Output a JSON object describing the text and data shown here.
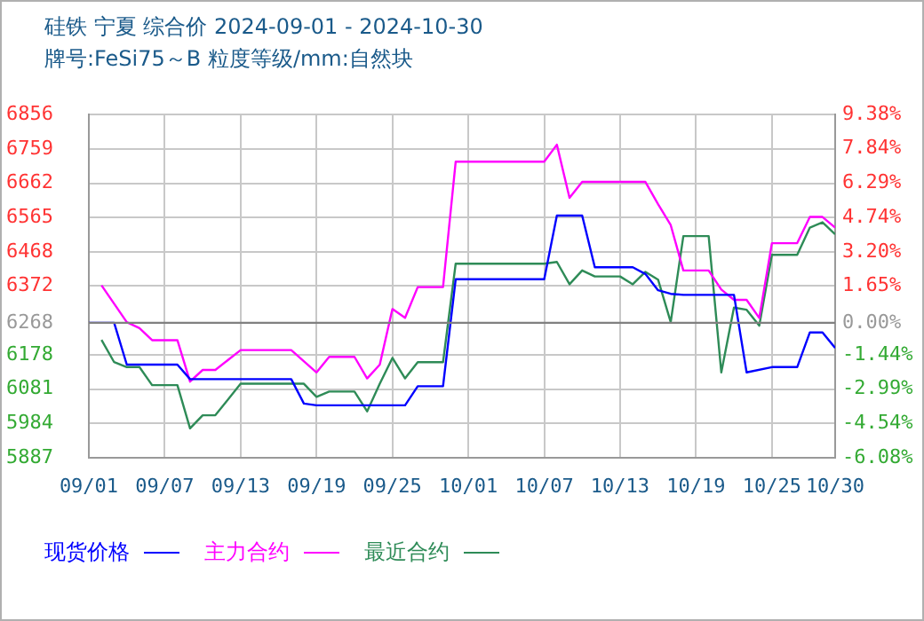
{
  "chart_data": {
    "type": "line",
    "title": "硅铁  宁夏  综合价 2024-09-01 - 2024-10-30",
    "subtitle": "牌号:FeSi75～B 粒度等级/mm:自然块",
    "xlim": [
      "2024-09-01",
      "2024-10-30"
    ],
    "xticks": [
      {
        "value": "2024-09-01",
        "label": "09/01"
      },
      {
        "value": "2024-09-07",
        "label": "09/07"
      },
      {
        "value": "2024-09-13",
        "label": "09/13"
      },
      {
        "value": "2024-09-19",
        "label": "09/19"
      },
      {
        "value": "2024-09-25",
        "label": "09/25"
      },
      {
        "value": "2024-10-01",
        "label": "10/01"
      },
      {
        "value": "2024-10-07",
        "label": "10/07"
      },
      {
        "value": "2024-10-13",
        "label": "10/13"
      },
      {
        "value": "2024-10-19",
        "label": "10/19"
      },
      {
        "value": "2024-10-25",
        "label": "10/25"
      },
      {
        "value": "2024-10-30",
        "label": "10/30"
      }
    ],
    "ylim": [
      5887,
      6856
    ],
    "yticks": [
      5887,
      5984,
      6081,
      6178,
      6268,
      6372,
      6468,
      6565,
      6662,
      6759,
      6856
    ],
    "y2lim": [
      -6.08,
      9.38
    ],
    "y2ticks": [
      {
        "value": -6.08,
        "label": "-6.08%"
      },
      {
        "value": -4.54,
        "label": "-4.54%"
      },
      {
        "value": -2.99,
        "label": "-2.99%"
      },
      {
        "value": -1.44,
        "label": "-1.44%"
      },
      {
        "value": 0,
        "label": "0.00%"
      },
      {
        "value": 1.65,
        "label": "1.65%"
      },
      {
        "value": 3.2,
        "label": "3.20%"
      },
      {
        "value": 4.74,
        "label": "4.74%"
      },
      {
        "value": 6.29,
        "label": "6.29%"
      },
      {
        "value": 7.84,
        "label": "7.84%"
      },
      {
        "value": 9.38,
        "label": "9.38%"
      }
    ],
    "ref_lines": [
      {
        "axis": "y",
        "value": 6268,
        "color": "#808080"
      }
    ],
    "grid": true,
    "legend": "bottom",
    "marker": "none",
    "line_style": "solid",
    "series": [
      {
        "name": "现货价格",
        "color": "#0000ff",
        "x": [
          "2024-09-01",
          "2024-09-03",
          "2024-09-04",
          "2024-09-08",
          "2024-09-09",
          "2024-09-17",
          "2024-09-18",
          "2024-09-19",
          "2024-09-26",
          "2024-09-27",
          "2024-09-29",
          "2024-09-30",
          "2024-10-07",
          "2024-10-08",
          "2024-10-10",
          "2024-10-11",
          "2024-10-14",
          "2024-10-15",
          "2024-10-16",
          "2024-10-17",
          "2024-10-18",
          "2024-10-22",
          "2024-10-23",
          "2024-10-25",
          "2024-10-27",
          "2024-10-28",
          "2024-10-29",
          "2024-10-30"
        ],
        "values": [
          6268,
          6268,
          6150,
          6150,
          6109,
          6109,
          6040,
          6035,
          6035,
          6089,
          6089,
          6391,
          6391,
          6571,
          6571,
          6425,
          6425,
          6406,
          6360,
          6350,
          6347,
          6347,
          6128,
          6143,
          6143,
          6241,
          6241,
          6197
        ]
      },
      {
        "name": "主力合约",
        "color": "#ff00ff",
        "x": [
          "2024-09-02",
          "2024-09-04",
          "2024-09-05",
          "2024-09-06",
          "2024-09-08",
          "2024-09-09",
          "2024-09-10",
          "2024-09-11",
          "2024-09-13",
          "2024-09-17",
          "2024-09-19",
          "2024-09-20",
          "2024-09-22",
          "2024-09-23",
          "2024-09-24",
          "2024-09-25",
          "2024-09-26",
          "2024-09-27",
          "2024-09-29",
          "2024-09-30",
          "2024-10-07",
          "2024-10-08",
          "2024-10-09",
          "2024-10-10",
          "2024-10-14",
          "2024-10-15",
          "2024-10-16",
          "2024-10-17",
          "2024-10-18",
          "2024-10-19",
          "2024-10-20",
          "2024-10-21",
          "2024-10-22",
          "2024-10-23",
          "2024-10-24",
          "2024-10-25",
          "2024-10-27",
          "2024-10-28",
          "2024-10-29",
          "2024-10-30"
        ],
        "values": [
          6374,
          6270,
          6253,
          6219,
          6219,
          6102,
          6135,
          6135,
          6191,
          6191,
          6128,
          6172,
          6172,
          6111,
          6150,
          6307,
          6282,
          6369,
          6369,
          6723,
          6723,
          6771,
          6621,
          6666,
          6666,
          6666,
          6603,
          6544,
          6416,
          6416,
          6416,
          6362,
          6333,
          6333,
          6282,
          6493,
          6493,
          6567,
          6567,
          6537
        ]
      },
      {
        "name": "最近合约",
        "color": "#2e8b57",
        "x": [
          "2024-09-02",
          "2024-09-03",
          "2024-09-04",
          "2024-09-05",
          "2024-09-06",
          "2024-09-08",
          "2024-09-09",
          "2024-09-10",
          "2024-09-11",
          "2024-09-13",
          "2024-09-18",
          "2024-09-19",
          "2024-09-20",
          "2024-09-22",
          "2024-09-23",
          "2024-09-24",
          "2024-09-25",
          "2024-09-26",
          "2024-09-27",
          "2024-09-29",
          "2024-09-30",
          "2024-10-07",
          "2024-10-08",
          "2024-10-09",
          "2024-10-10",
          "2024-10-11",
          "2024-10-13",
          "2024-10-14",
          "2024-10-15",
          "2024-10-16",
          "2024-10-17",
          "2024-10-18",
          "2024-10-20",
          "2024-10-21",
          "2024-10-22",
          "2024-10-23",
          "2024-10-24",
          "2024-10-25",
          "2024-10-27",
          "2024-10-28",
          "2024-10-29",
          "2024-10-30"
        ],
        "values": [
          6220,
          6157,
          6143,
          6143,
          6092,
          6092,
          5970,
          6007,
          6007,
          6096,
          6096,
          6059,
          6074,
          6074,
          6018,
          6096,
          6169,
          6111,
          6157,
          6157,
          6435,
          6435,
          6440,
          6377,
          6416,
          6399,
          6399,
          6377,
          6412,
          6390,
          6270,
          6513,
          6513,
          6128,
          6311,
          6305,
          6260,
          6460,
          6460,
          6537,
          6552,
          6518
        ]
      }
    ]
  }
}
